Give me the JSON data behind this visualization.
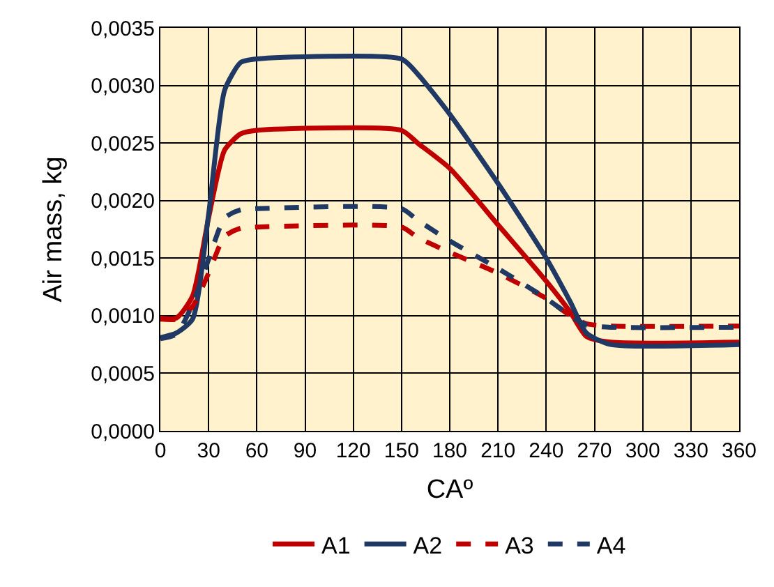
{
  "chart_data": {
    "type": "line",
    "xlabel": "CAº",
    "ylabel": "Air mass, kg",
    "xlim": [
      0,
      360
    ],
    "xticks": [
      0,
      30,
      60,
      90,
      120,
      150,
      180,
      210,
      240,
      270,
      300,
      330,
      360
    ],
    "ylim": [
      0,
      0.0035
    ],
    "yticks": [
      {
        "value": 0,
        "label": "0,0000"
      },
      {
        "value": 0.0005,
        "label": "0,0005"
      },
      {
        "value": 0.001,
        "label": "0,0010"
      },
      {
        "value": 0.0015,
        "label": "0,0015"
      },
      {
        "value": 0.002,
        "label": "0,0020"
      },
      {
        "value": 0.0025,
        "label": "0,0025"
      },
      {
        "value": 0.003,
        "label": "0,0030"
      },
      {
        "value": 0.0035,
        "label": "0,0035"
      }
    ],
    "grid": true,
    "legend": "bottom",
    "marker": "none",
    "series": [
      {
        "name": "A1",
        "color": "#c00000",
        "line_style": "solid",
        "x": [
          0,
          10,
          20,
          30,
          40,
          50,
          60,
          150,
          160,
          180,
          210,
          240,
          255,
          265,
          280,
          360
        ],
        "values": [
          0.00098,
          0.00098,
          0.00117,
          0.00185,
          0.00244,
          0.00258,
          0.00261,
          0.00261,
          0.0025,
          0.00228,
          0.00179,
          0.0013,
          0.00103,
          0.00082,
          0.00077,
          0.00077
        ]
      },
      {
        "name": "A2",
        "color": "#1f3864",
        "line_style": "solid",
        "x": [
          0,
          10,
          20,
          30,
          40,
          50,
          60,
          150,
          160,
          180,
          210,
          240,
          255,
          265,
          280,
          360
        ],
        "values": [
          0.00081,
          0.00085,
          0.00097,
          0.00188,
          0.00296,
          0.0032,
          0.00323,
          0.00323,
          0.0031,
          0.00275,
          0.00215,
          0.0015,
          0.00112,
          0.00085,
          0.00075,
          0.00075
        ]
      },
      {
        "name": "A3",
        "color": "#c00000",
        "line_style": "dashed",
        "x": [
          0,
          10,
          20,
          30,
          40,
          50,
          60,
          150,
          160,
          180,
          210,
          240,
          255,
          265,
          280,
          360
        ],
        "values": [
          0.00097,
          0.00097,
          0.00108,
          0.00137,
          0.00169,
          0.00176,
          0.00177,
          0.00177,
          0.00168,
          0.00155,
          0.00137,
          0.00115,
          0.001,
          0.00093,
          0.00091,
          0.00091
        ]
      },
      {
        "name": "A4",
        "color": "#1f3864",
        "line_style": "dashed",
        "x": [
          0,
          10,
          20,
          30,
          40,
          50,
          60,
          150,
          160,
          180,
          210,
          240,
          255,
          265,
          280,
          360
        ],
        "values": [
          0.0008,
          0.00084,
          0.0011,
          0.00149,
          0.00185,
          0.00192,
          0.00193,
          0.00193,
          0.00183,
          0.00165,
          0.00141,
          0.00115,
          0.001,
          0.00092,
          0.0009,
          0.0009
        ]
      }
    ]
  }
}
